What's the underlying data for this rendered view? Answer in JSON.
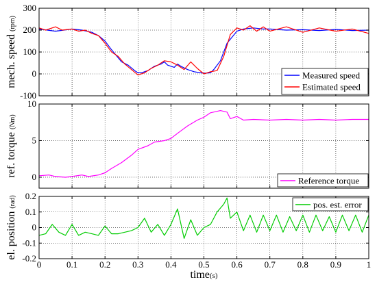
{
  "chart_data": [
    {
      "type": "line",
      "ylabel": "mech. speed",
      "ylabel_unit": "(rpm)",
      "xlim": [
        0,
        1
      ],
      "ylim": [
        -100,
        300
      ],
      "yticks": [
        "-100",
        "0",
        "100",
        "200",
        "300"
      ],
      "ytick_values": [
        -100,
        0,
        100,
        200,
        300
      ],
      "grid": true,
      "legend_position": "bottom-right",
      "series": [
        {
          "name": "Measured speed",
          "color": "#0000ff",
          "x": [
            0,
            0.05,
            0.1,
            0.13,
            0.16,
            0.18,
            0.2,
            0.22,
            0.25,
            0.27,
            0.29,
            0.3,
            0.31,
            0.33,
            0.35,
            0.37,
            0.38,
            0.39,
            0.41,
            0.42,
            0.43,
            0.45,
            0.47,
            0.49,
            0.5,
            0.52,
            0.53,
            0.55,
            0.57,
            0.6,
            0.62,
            0.65,
            0.68,
            0.7,
            0.75,
            0.8,
            0.85,
            0.9,
            0.95,
            1.0
          ],
          "y": [
            205,
            195,
            205,
            200,
            190,
            175,
            150,
            110,
            55,
            40,
            15,
            5,
            5,
            15,
            35,
            45,
            55,
            40,
            30,
            45,
            35,
            20,
            10,
            5,
            3,
            5,
            20,
            60,
            140,
            195,
            205,
            210,
            205,
            205,
            200,
            202,
            198,
            203,
            198,
            200
          ]
        },
        {
          "name": "Estimated speed",
          "color": "#ff0000",
          "x": [
            0,
            0.02,
            0.05,
            0.07,
            0.1,
            0.12,
            0.14,
            0.16,
            0.18,
            0.2,
            0.22,
            0.24,
            0.26,
            0.28,
            0.3,
            0.32,
            0.34,
            0.36,
            0.38,
            0.4,
            0.42,
            0.44,
            0.46,
            0.48,
            0.5,
            0.52,
            0.54,
            0.56,
            0.58,
            0.6,
            0.62,
            0.64,
            0.66,
            0.68,
            0.7,
            0.75,
            0.8,
            0.85,
            0.9,
            0.95,
            1.0
          ],
          "y": [
            210,
            200,
            215,
            200,
            205,
            195,
            200,
            185,
            175,
            140,
            100,
            80,
            45,
            20,
            -5,
            5,
            25,
            40,
            60,
            55,
            40,
            20,
            55,
            25,
            0,
            10,
            15,
            80,
            180,
            210,
            200,
            220,
            195,
            215,
            195,
            215,
            190,
            210,
            195,
            205,
            185
          ]
        }
      ]
    },
    {
      "type": "line",
      "ylabel": "ref. torque",
      "ylabel_unit": "(Nm)",
      "xlim": [
        0,
        1
      ],
      "ylim": [
        -1.5,
        10
      ],
      "yticks": [
        "0",
        "5",
        "10"
      ],
      "ytick_values": [
        0,
        5,
        10
      ],
      "grid": true,
      "legend_position": "bottom-right",
      "series": [
        {
          "name": "Reference torque",
          "color": "#ff00ff",
          "x": [
            0,
            0.03,
            0.05,
            0.08,
            0.1,
            0.13,
            0.15,
            0.18,
            0.2,
            0.22,
            0.25,
            0.28,
            0.3,
            0.33,
            0.35,
            0.38,
            0.4,
            0.42,
            0.45,
            0.48,
            0.5,
            0.52,
            0.55,
            0.57,
            0.58,
            0.6,
            0.62,
            0.65,
            0.7,
            0.75,
            0.8,
            0.85,
            0.9,
            0.95,
            1.0
          ],
          "y": [
            0.2,
            0.3,
            0.1,
            0.0,
            0.1,
            0.3,
            0.1,
            0.3,
            0.6,
            1.2,
            2.0,
            3.0,
            3.8,
            4.3,
            4.8,
            5.0,
            5.3,
            6.0,
            7.0,
            7.8,
            8.2,
            8.8,
            9.1,
            8.9,
            8.0,
            8.3,
            7.8,
            7.9,
            7.8,
            7.9,
            7.8,
            7.9,
            7.8,
            7.9,
            7.9
          ]
        }
      ]
    },
    {
      "type": "line",
      "ylabel": "el. position",
      "ylabel_unit": "(rad)",
      "xlabel": "time",
      "xlabel_unit": "(s)",
      "xlim": [
        0,
        1
      ],
      "ylim": [
        -0.2,
        0.2
      ],
      "yticks": [
        "-0.2",
        "-0.1",
        "0",
        "0.1",
        "0.2"
      ],
      "ytick_values": [
        -0.2,
        -0.1,
        0,
        0.1,
        0.2
      ],
      "xticks": [
        "0",
        "0.1",
        "0.2",
        "0.3",
        "0.4",
        "0.5",
        "0.6",
        "0.7",
        "0.8",
        "0.9",
        "1"
      ],
      "xtick_values": [
        0,
        0.1,
        0.2,
        0.3,
        0.4,
        0.5,
        0.6,
        0.7,
        0.8,
        0.9,
        1.0
      ],
      "grid": true,
      "legend_position": "top-right",
      "series": [
        {
          "name": "pos. est. error",
          "color": "#00cc00",
          "x": [
            0,
            0.02,
            0.04,
            0.06,
            0.08,
            0.1,
            0.12,
            0.14,
            0.16,
            0.18,
            0.2,
            0.22,
            0.24,
            0.26,
            0.28,
            0.3,
            0.32,
            0.34,
            0.36,
            0.38,
            0.4,
            0.42,
            0.44,
            0.46,
            0.48,
            0.5,
            0.52,
            0.54,
            0.56,
            0.57,
            0.58,
            0.6,
            0.62,
            0.64,
            0.66,
            0.68,
            0.7,
            0.72,
            0.74,
            0.76,
            0.78,
            0.8,
            0.82,
            0.84,
            0.86,
            0.88,
            0.9,
            0.92,
            0.94,
            0.96,
            0.98,
            1.0
          ],
          "y": [
            -0.05,
            -0.04,
            0.02,
            -0.03,
            -0.05,
            0.02,
            -0.05,
            -0.03,
            -0.04,
            -0.05,
            0.01,
            -0.04,
            -0.04,
            -0.03,
            -0.02,
            0.0,
            0.06,
            -0.03,
            0.02,
            -0.05,
            0.02,
            0.12,
            -0.07,
            0.05,
            -0.05,
            0.0,
            0.02,
            0.1,
            0.15,
            0.19,
            0.06,
            0.1,
            -0.02,
            0.08,
            -0.03,
            0.08,
            -0.02,
            0.08,
            -0.03,
            0.07,
            -0.02,
            0.08,
            -0.03,
            0.08,
            -0.02,
            0.07,
            -0.03,
            0.08,
            -0.02,
            0.08,
            -0.03,
            0.08
          ]
        }
      ]
    }
  ]
}
